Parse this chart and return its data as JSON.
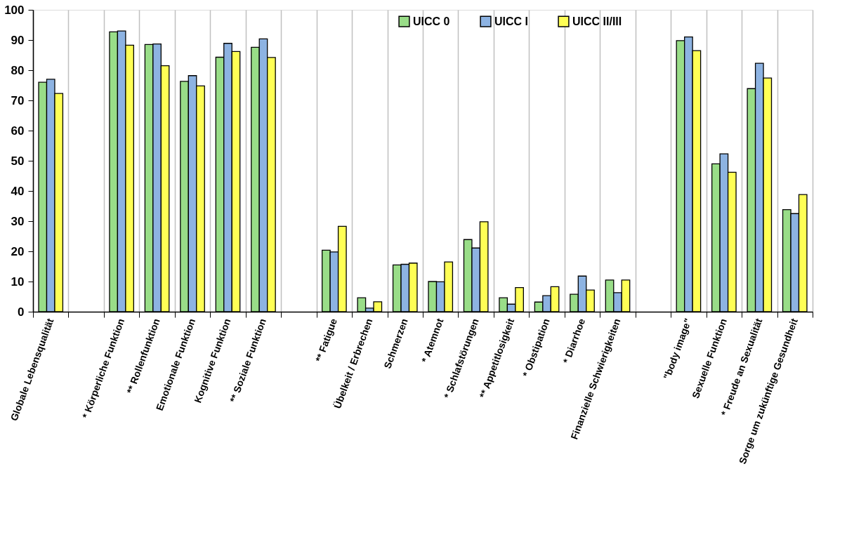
{
  "chart_data": {
    "type": "bar",
    "categories": [
      "Globale Lebensqualität",
      null,
      "* Körperliche Funktion",
      "** Rollenfunktion",
      "Emotionale Funktion",
      "Kognitive Funktion",
      "** Soziale Funktion",
      null,
      "** Fatigue",
      "Übelkeit / Erbrechen",
      "Schmerzen",
      "* Atemnot",
      "* Schlafstörungen",
      "** Appetitlosigkeit",
      "* Obstipation",
      "* Diarrhoe",
      "Finanzielle Schwierigkeiten",
      null,
      "\"body image\"",
      "Sexuelle Funktion",
      "* Freude an Sexualität",
      "Sorge um zukünftige Gesundheit"
    ],
    "series": [
      {
        "name": "UICC 0",
        "color": "#99dd88",
        "values": [
          76,
          null,
          92.7,
          88.5,
          76.3,
          84.3,
          87.6,
          null,
          20.4,
          4.6,
          15.5,
          10,
          23.9,
          4.6,
          3.2,
          5.8,
          10.5,
          null,
          89.8,
          49,
          73.9,
          33.8
        ]
      },
      {
        "name": "UICC I",
        "color": "#8db3e2",
        "values": [
          77,
          null,
          93,
          88.7,
          78.2,
          88.9,
          90.4,
          null,
          19.8,
          1.2,
          15.7,
          9.9,
          21.1,
          2.5,
          5.3,
          11.8,
          6.3,
          null,
          91,
          52.3,
          82.3,
          32.5
        ]
      },
      {
        "name": "UICC II/III",
        "color": "#ffff55",
        "values": [
          72.3,
          null,
          88.3,
          81.5,
          74.8,
          86.2,
          84.2,
          null,
          28.3,
          3.3,
          16.1,
          16.5,
          29.8,
          8,
          8.3,
          7.2,
          10.5,
          null,
          86.5,
          46.2,
          77.4,
          38.8
        ]
      }
    ],
    "ylim": [
      0,
      100
    ],
    "yticks": [
      0,
      10,
      20,
      30,
      40,
      50,
      60,
      70,
      80,
      90,
      100
    ],
    "grid": "x",
    "legend": "top"
  }
}
